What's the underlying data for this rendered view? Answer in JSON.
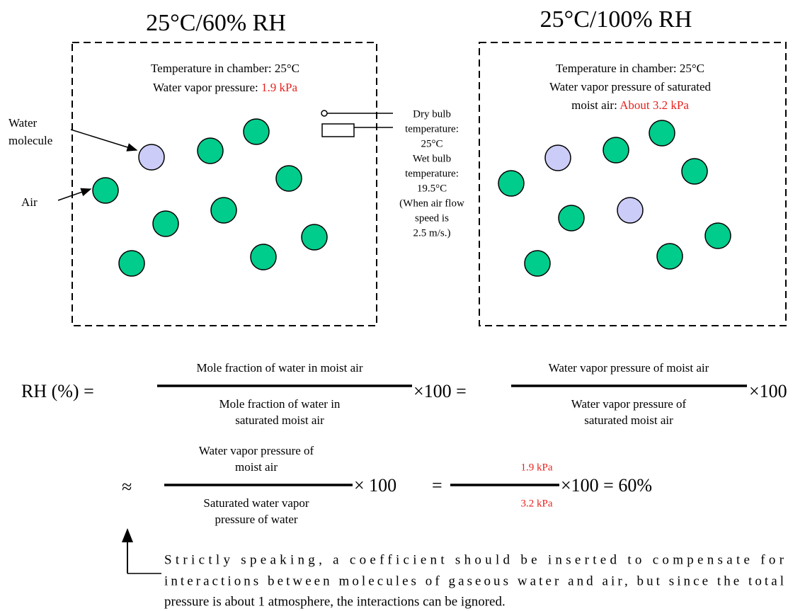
{
  "left_panel": {
    "title": "25°C/60% RH",
    "temperature": "Temperature in chamber: 25°C",
    "pressure_label": "Water vapor pressure:",
    "pressure_value": "1.9 kPa",
    "water_label": [
      "Water",
      "molecule"
    ],
    "air_label": "Air"
  },
  "right_panel": {
    "title": "25°C/100% RH",
    "temperature": "Temperature in chamber: 25°C",
    "pressure_lines": [
      "Water vapor pressure of saturated",
      "moist air:"
    ],
    "pressure_value": "About 3.2 kPa"
  },
  "thermometer": {
    "lines": [
      "Dry bulb",
      "temperature:",
      "25°C",
      "Wet bulb",
      "temperature:",
      "19.5°C",
      "(When air flow",
      "speed is",
      "2.5 m/s.)"
    ]
  },
  "equation": {
    "lhs": "RH (%) =",
    "frac1": {
      "numerator": [
        "Mole fraction of water in moist air"
      ],
      "denominator": [
        "Mole fraction of water in",
        "saturated moist air"
      ]
    },
    "mult1": "×100 =",
    "frac2": {
      "numerator": [
        "Water vapor pressure of moist air"
      ],
      "denominator": [
        "Water vapor pressure of",
        "saturated moist air"
      ]
    },
    "mult2": "×100",
    "approx": "≈",
    "frac3": {
      "numerator": [
        "Water vapor pressure of",
        "moist air"
      ],
      "denominator": [
        "Saturated water vapor",
        "pressure of water"
      ]
    },
    "mult3": "× 100",
    "equals": "=",
    "frac4": {
      "numerator": [
        "1.9 kPa"
      ],
      "denominator": [
        "3.2 kPa"
      ]
    },
    "result": "×100 = 60%"
  },
  "note": [
    "Strictly speaking, a coefficient should be inserted to compensate for",
    "interactions between molecules of gaseous water and air, but since the total",
    "pressure is about 1 atmosphere, the interactions can be ignored."
  ]
}
